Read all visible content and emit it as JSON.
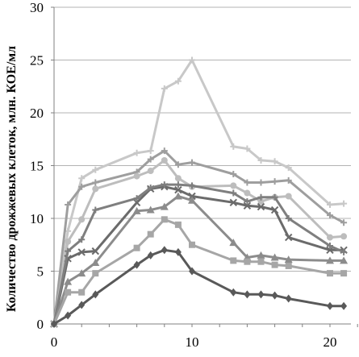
{
  "chart_data": {
    "type": "line",
    "title": "",
    "xlabel": "",
    "ylabel": "Количество дрожжевых  клеток, млн. КОЕ/мл",
    "xlim": [
      0,
      22
    ],
    "ylim": [
      0,
      30
    ],
    "xticks": [
      0,
      10,
      20
    ],
    "yticks": [
      0,
      5,
      10,
      15,
      20,
      25,
      30
    ],
    "grid": "horizontal",
    "legend": "none",
    "series": [
      {
        "color": "#c8c8c8",
        "marker": "plus",
        "x": [
          0,
          1,
          2,
          3,
          6,
          7,
          8,
          9,
          10,
          13,
          14,
          15,
          16,
          17,
          20,
          21
        ],
        "y": [
          0,
          8.8,
          13.8,
          14.6,
          16.2,
          16.4,
          22.3,
          23.0,
          25.0,
          16.8,
          16.6,
          15.5,
          15.4,
          14.8,
          11.3,
          11.4
        ]
      },
      {
        "color": "#9e9e9e",
        "marker": "plus",
        "x": [
          0,
          1,
          2,
          3,
          6,
          7,
          8,
          9,
          10,
          13,
          14,
          15,
          16,
          17,
          20,
          21
        ],
        "y": [
          0,
          11.3,
          13.0,
          13.4,
          14.4,
          15.6,
          16.4,
          15.1,
          15.3,
          14.2,
          13.4,
          13.4,
          13.5,
          13.6,
          10.3,
          9.6
        ]
      },
      {
        "color": "#bdbdbd",
        "marker": "circle",
        "x": [
          0,
          1,
          2,
          3,
          6,
          7,
          8,
          9,
          10,
          13,
          14,
          15,
          16,
          17,
          20,
          21
        ],
        "y": [
          0,
          7.8,
          9.9,
          12.8,
          14.0,
          14.5,
          15.5,
          13.8,
          13.0,
          13.1,
          12.4,
          11.6,
          12.0,
          12.1,
          8.2,
          8.3
        ]
      },
      {
        "color": "#6b6b6b",
        "marker": "cross",
        "x": [
          0,
          1,
          2,
          3,
          6,
          7,
          8,
          9,
          10,
          13,
          14,
          15,
          16,
          17,
          20,
          21
        ],
        "y": [
          0,
          6.2,
          6.8,
          6.9,
          11.5,
          12.8,
          13.0,
          12.7,
          12.1,
          11.5,
          11.2,
          11.1,
          10.8,
          8.2,
          7.0,
          7.0
        ]
      },
      {
        "color": "#7f7f7f",
        "marker": "plus",
        "x": [
          0,
          1,
          2,
          3,
          6,
          7,
          8,
          9,
          10,
          13,
          14,
          15,
          16,
          17,
          20,
          21
        ],
        "y": [
          0,
          6.9,
          8.0,
          10.8,
          11.9,
          12.9,
          13.2,
          13.2,
          13.1,
          12.4,
          11.6,
          12.0,
          12.0,
          10.0,
          7.4,
          6.8
        ]
      },
      {
        "color": "#8c8c8c",
        "marker": "triangle",
        "x": [
          0,
          1,
          2,
          3,
          6,
          7,
          8,
          9,
          10,
          13,
          14,
          15,
          16,
          17,
          20,
          21
        ],
        "y": [
          0,
          4.0,
          4.8,
          5.8,
          10.7,
          10.8,
          11.1,
          12.1,
          11.7,
          7.7,
          6.3,
          6.5,
          6.3,
          6.1,
          6.0,
          6.0
        ]
      },
      {
        "color": "#a6a6a6",
        "marker": "square",
        "x": [
          0,
          1,
          2,
          3,
          6,
          7,
          8,
          9,
          10,
          13,
          14,
          15,
          16,
          17,
          20,
          21
        ],
        "y": [
          0,
          3.0,
          3.0,
          4.8,
          7.2,
          8.5,
          9.9,
          9.4,
          7.5,
          6.0,
          5.9,
          5.9,
          5.6,
          5.5,
          4.8,
          4.8
        ]
      },
      {
        "color": "#595959",
        "marker": "diamond",
        "x": [
          0,
          1,
          2,
          3,
          6,
          7,
          8,
          9,
          10,
          13,
          14,
          15,
          16,
          17,
          20,
          21
        ],
        "y": [
          0,
          0.8,
          1.8,
          2.8,
          5.6,
          6.5,
          7.0,
          6.8,
          5.0,
          3.0,
          2.8,
          2.8,
          2.7,
          2.4,
          1.7,
          1.7
        ]
      }
    ]
  }
}
